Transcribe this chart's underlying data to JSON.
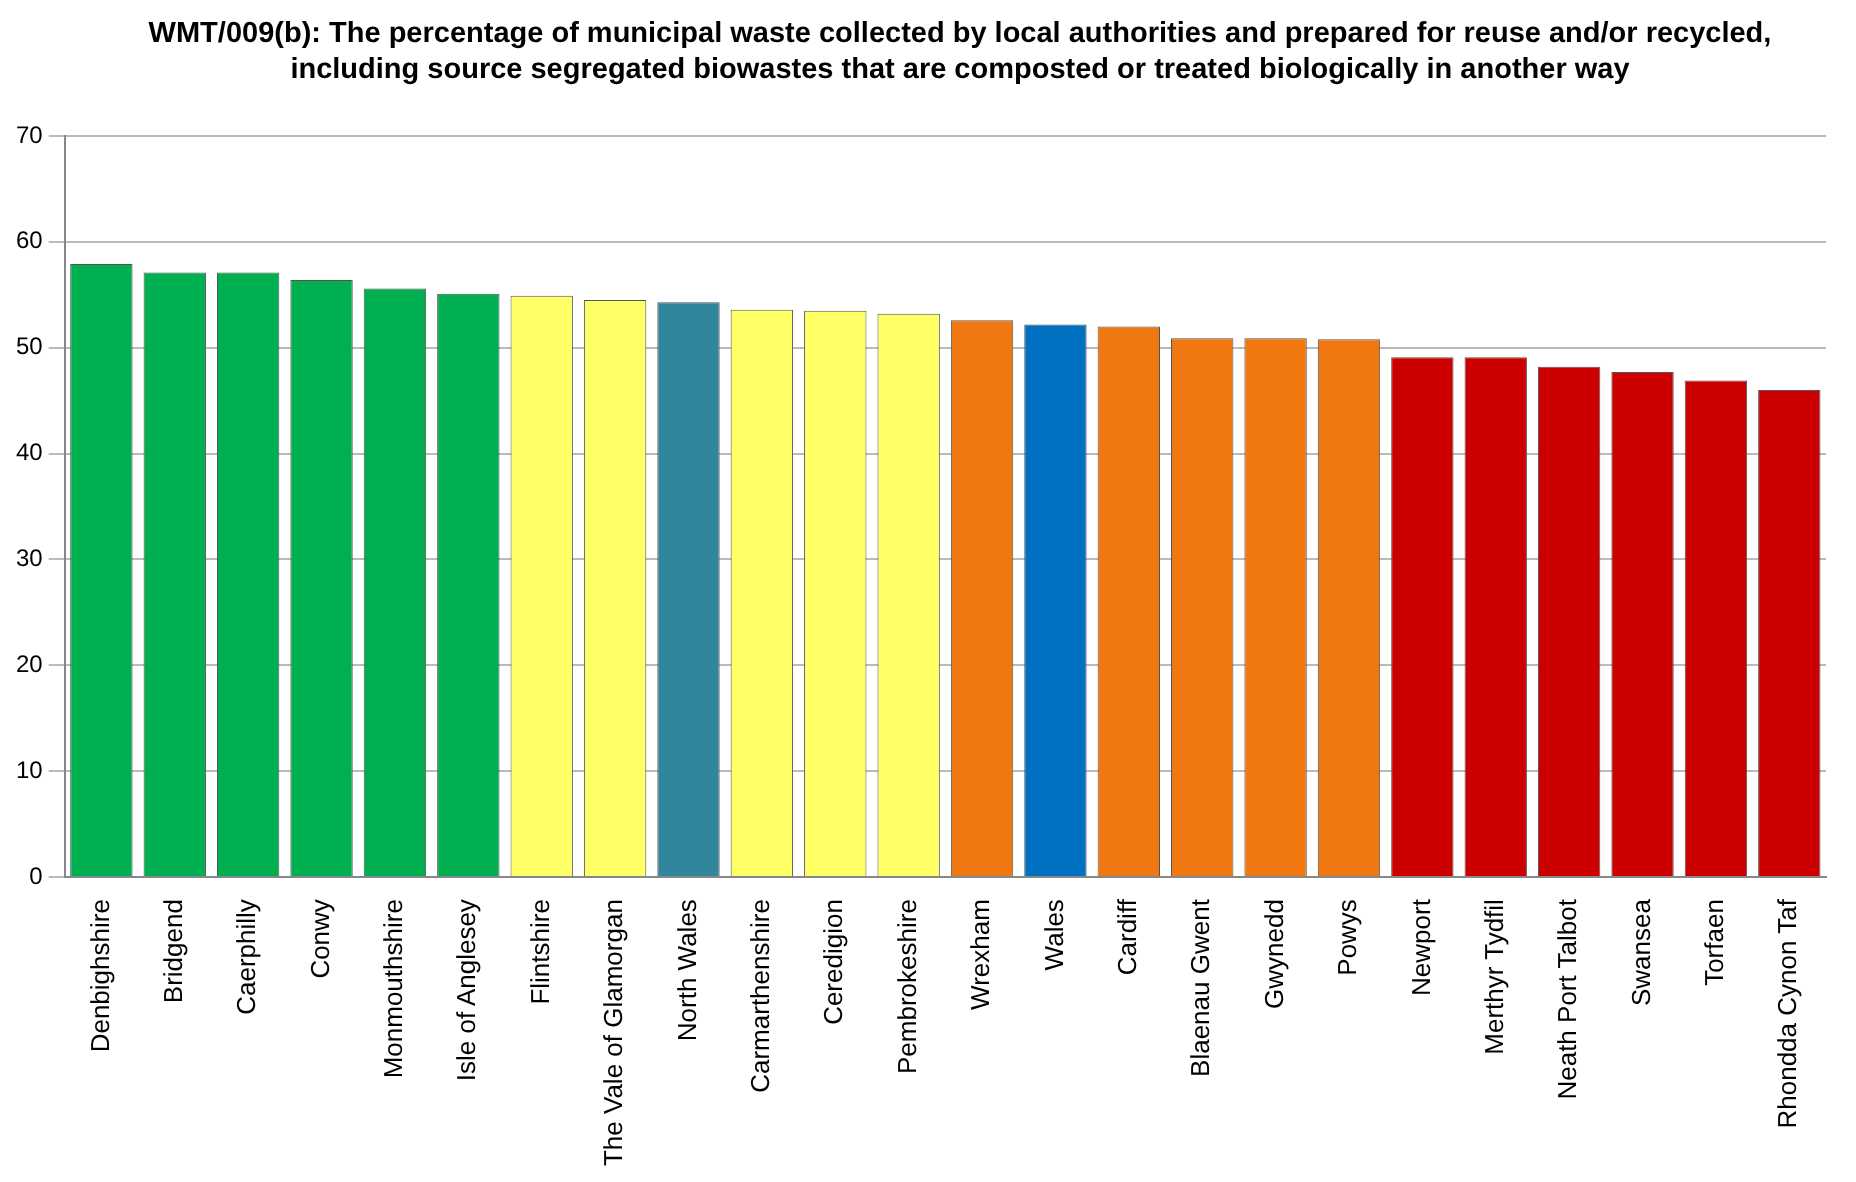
{
  "chart_data": {
    "type": "bar",
    "title": "WMT/009(b): The percentage of municipal waste collected by local authorities and prepared for reuse and/or recycled, including source segregated biowastes that are composted or treated biologically in another way",
    "categories": [
      "Denbighshire",
      "Bridgend",
      "Caerphilly",
      "Conwy",
      "Monmouthshire",
      "Isle of Anglesey",
      "Flintshire",
      "The Vale of Glamorgan",
      "North Wales",
      "Carmarthenshire",
      "Ceredigion",
      "Pembrokeshire",
      "Wrexham",
      "Wales",
      "Cardiff",
      "Blaenau Gwent",
      "Gwynedd",
      "Powys",
      "Newport",
      "Merthyr Tydfil",
      "Neath Port Talbot",
      "Swansea",
      "Torfaen",
      "Rhondda Cynon Taf"
    ],
    "values": [
      57.9,
      57.1,
      57.1,
      56.4,
      55.6,
      55.1,
      54.9,
      54.5,
      54.3,
      53.6,
      53.5,
      53.2,
      52.6,
      52.2,
      52.0,
      50.9,
      50.9,
      50.8,
      49.1,
      49.1,
      48.2,
      47.7,
      46.9,
      46.0
    ],
    "colors": [
      "#00b050",
      "#00b050",
      "#00b050",
      "#00b050",
      "#00b050",
      "#00b050",
      "#ffff66",
      "#ffff66",
      "#31859c",
      "#ffff66",
      "#ffff66",
      "#ffff66",
      "#f07810",
      "#0070c0",
      "#f07810",
      "#f07810",
      "#f07810",
      "#f07810",
      "#cc0000",
      "#cc0000",
      "#cc0000",
      "#cc0000",
      "#cc0000",
      "#cc0000"
    ],
    "ylim": [
      0,
      70
    ],
    "yticks": [
      0,
      10,
      20,
      30,
      40,
      50,
      60,
      70
    ],
    "grid": "y"
  }
}
